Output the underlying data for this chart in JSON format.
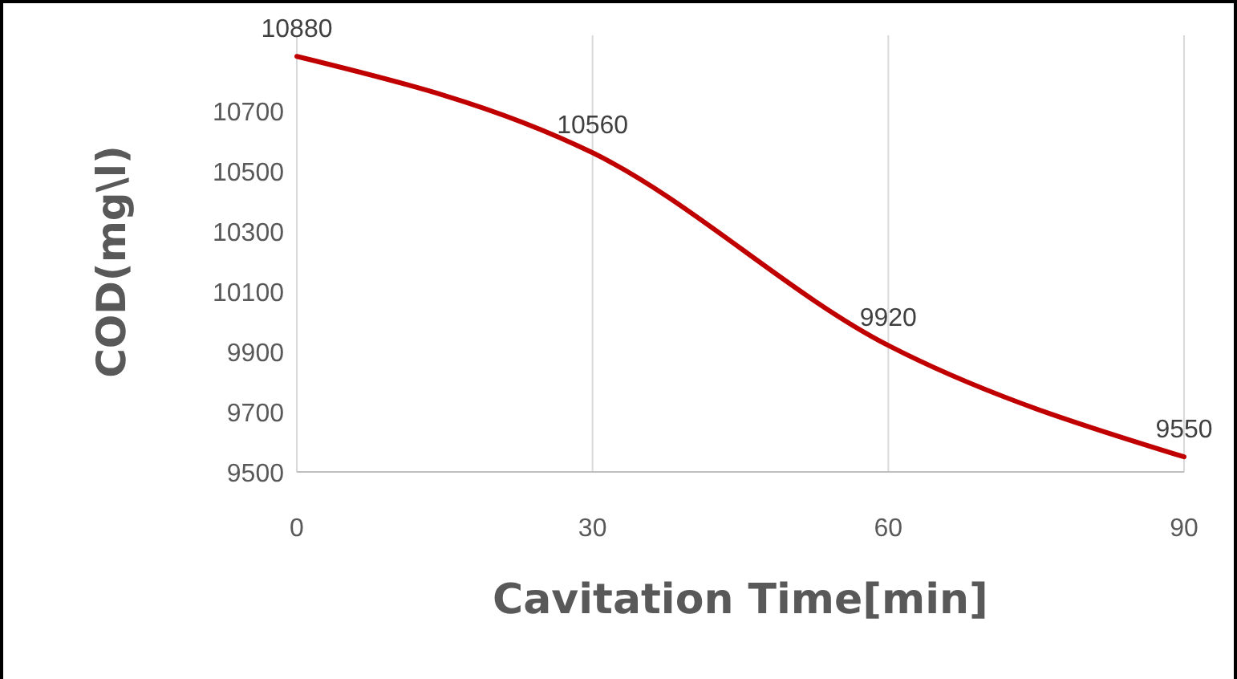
{
  "chart_data": {
    "type": "line",
    "xlabel": "Cavitation Time[min]",
    "ylabel": "COD(mg\\l)",
    "x": [
      0,
      30,
      60,
      90
    ],
    "series": [
      {
        "color": "#c00000",
        "values": [
          10880,
          10560,
          9920,
          9550
        ]
      }
    ],
    "xlim": [
      0,
      90
    ],
    "xticks": [
      0,
      30,
      60,
      90
    ],
    "ylim": [
      9500,
      10950
    ],
    "yticks": [
      9500,
      9700,
      9900,
      10100,
      10300,
      10500,
      10700
    ],
    "grid": "x",
    "data_labels": true,
    "marker": "none",
    "line_style": "solid"
  }
}
